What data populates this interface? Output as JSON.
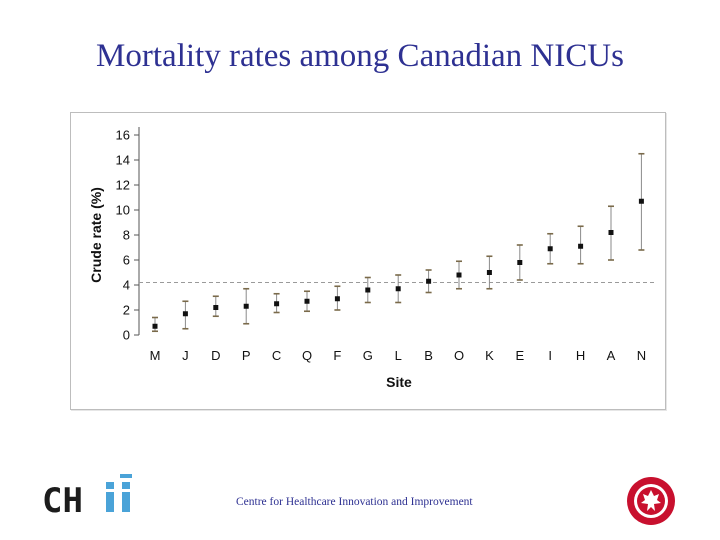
{
  "slide": {
    "title": "Mortality rates among Canadian NICUs",
    "footer": "Centre for Healthcare Innovation and Improvement",
    "logo_text": "CHIi",
    "colors": {
      "title": "#2e3192",
      "logo_dark": "#1c1c1c",
      "logo_accent": "#4aa3d8",
      "seal": "#c8102e"
    }
  },
  "chart_data": {
    "type": "scatter",
    "title": "",
    "xlabel": "Site",
    "ylabel": "Crude rate (%)",
    "ylim": [
      0,
      16
    ],
    "yticks": [
      0,
      2,
      4,
      6,
      8,
      10,
      12,
      14,
      16
    ],
    "categories": [
      "M",
      "J",
      "D",
      "P",
      "C",
      "Q",
      "F",
      "G",
      "L",
      "B",
      "O",
      "K",
      "E",
      "I",
      "H",
      "A",
      "N"
    ],
    "values": [
      0.7,
      1.7,
      2.2,
      2.3,
      2.5,
      2.7,
      2.9,
      3.6,
      3.7,
      4.3,
      4.8,
      5.0,
      5.8,
      6.9,
      7.1,
      8.2,
      10.7
    ],
    "lower": [
      0.3,
      0.5,
      1.5,
      0.9,
      1.8,
      1.9,
      2.0,
      2.6,
      2.6,
      3.4,
      3.7,
      3.7,
      4.4,
      5.7,
      5.7,
      6.0,
      6.8
    ],
    "upper": [
      1.4,
      2.7,
      3.1,
      3.7,
      3.3,
      3.5,
      3.9,
      4.6,
      4.8,
      5.2,
      5.9,
      6.3,
      7.2,
      8.1,
      8.7,
      10.3,
      14.5
    ],
    "reference_line": 4.2,
    "grid": false
  }
}
